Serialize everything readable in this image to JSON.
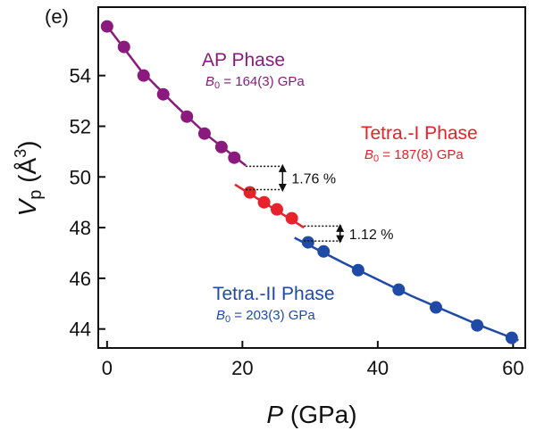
{
  "chart_data": {
    "type": "scatter",
    "panel_label": "(e)",
    "x_label": {
      "symbol": "P",
      "text": " (GPa)"
    },
    "y_label": {
      "symbol": "V",
      "sub": "p",
      "text": " (Å",
      "sup": "3",
      "close": ")"
    },
    "xlim": [
      -1.3,
      61.8
    ],
    "ylim": [
      43.25,
      56.7
    ],
    "xticks": [
      0,
      20,
      40,
      60
    ],
    "yticks": [
      44,
      46,
      48,
      50,
      52,
      54
    ],
    "series": [
      {
        "color": "#8b1a7e",
        "x": [
          0,
          2.5,
          5.4,
          8.3,
          11.8,
          14.4,
          16.9,
          18.8
        ],
        "values": [
          55.94,
          55.13,
          54.0,
          53.26,
          52.38,
          51.71,
          51.18,
          50.76
        ]
      },
      {
        "color": "#e8212a",
        "x": [
          21.1,
          23.2,
          25.1,
          27.3
        ],
        "values": [
          49.39,
          49.0,
          48.72,
          48.37
        ]
      },
      {
        "color": "#1f4aa8",
        "x": [
          29.7,
          32.0,
          37.1,
          43.1,
          48.6,
          54.7,
          59.8
        ],
        "values": [
          47.42,
          47.06,
          46.32,
          45.55,
          44.85,
          44.14,
          43.65
        ]
      }
    ],
    "fits": [
      {
        "color": "#8b1a7e",
        "x": [
          0,
          5,
          10,
          15,
          20.5
        ],
        "values": [
          55.95,
          54.2,
          52.85,
          51.6,
          50.45
        ]
      },
      {
        "color": "#e8212a",
        "x": [
          18.9,
          24,
          29.1
        ],
        "values": [
          49.7,
          48.85,
          48.0
        ]
      },
      {
        "color": "#1f4aa8",
        "x": [
          27.7,
          35,
          45,
          55,
          60.8
        ],
        "values": [
          47.6,
          46.6,
          45.3,
          44.15,
          43.55
        ]
      }
    ],
    "phases": [
      {
        "name": "AP Phase",
        "color": "#8b1a7e",
        "modulus": {
          "symbol": "B",
          "sub": "0",
          "text": " = 164(3) GPa"
        }
      },
      {
        "name": "Tetra.-I Phase",
        "color": "#e8212a",
        "modulus": {
          "symbol": "B",
          "sub": "0",
          "text": " = 187(8) GPa"
        }
      },
      {
        "name": "Tetra.-II Phase",
        "color": "#1f4aa8",
        "modulus": {
          "symbol": "B",
          "sub": "0",
          "text": " = 203(3) GPa"
        }
      }
    ],
    "gaps": [
      {
        "x": [
          20.5,
          26.2
        ],
        "y1": 50.42,
        "y2": 49.5,
        "label": "1.76 %"
      },
      {
        "x": [
          29.1,
          34.7
        ],
        "y1": 48.06,
        "y2": 47.47,
        "label": "1.12 %"
      }
    ]
  }
}
